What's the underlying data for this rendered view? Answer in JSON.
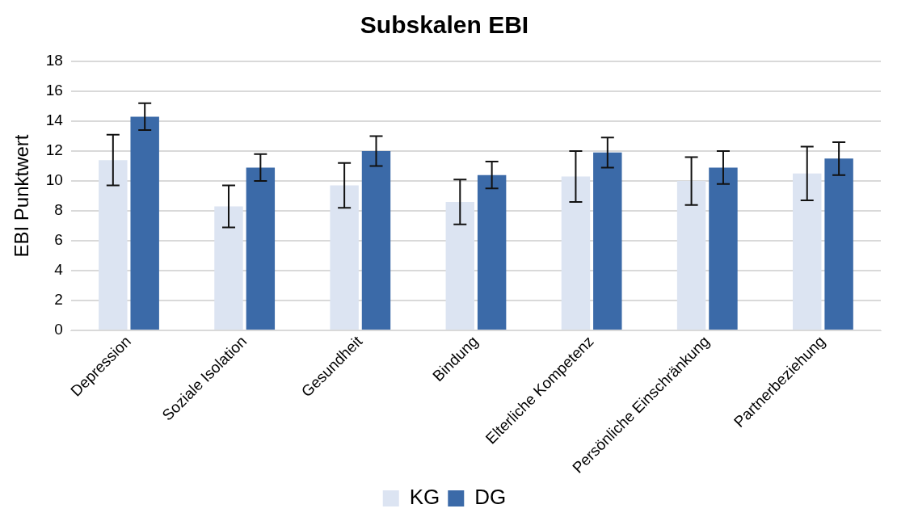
{
  "chart_data": {
    "type": "bar",
    "title": "Subskalen EBI",
    "ylabel": "EBI Punktwert",
    "categories": [
      "Depression",
      "Soziale Isolation",
      "Gesundheit",
      "Bindung",
      "Elterliche Kompetenz",
      "Persönliche Einschränkung",
      "Partnerbeziehung"
    ],
    "series": [
      {
        "name": "KG",
        "color": "#dce4f2",
        "values": [
          11.4,
          8.3,
          9.7,
          8.6,
          10.3,
          10.0,
          10.5
        ],
        "errors": [
          1.7,
          1.4,
          1.5,
          1.5,
          1.7,
          1.6,
          1.8
        ]
      },
      {
        "name": "DG",
        "color": "#3b6aa8",
        "values": [
          14.3,
          10.9,
          12.0,
          10.4,
          11.9,
          10.9,
          11.5
        ],
        "errors": [
          0.9,
          0.9,
          1.0,
          0.9,
          1.0,
          1.1,
          1.1
        ]
      }
    ],
    "ylim": [
      0,
      18
    ],
    "yticks": [
      0,
      2,
      4,
      6,
      8,
      10,
      12,
      14,
      16,
      18
    ],
    "grid": "y",
    "legend": "bottom"
  }
}
